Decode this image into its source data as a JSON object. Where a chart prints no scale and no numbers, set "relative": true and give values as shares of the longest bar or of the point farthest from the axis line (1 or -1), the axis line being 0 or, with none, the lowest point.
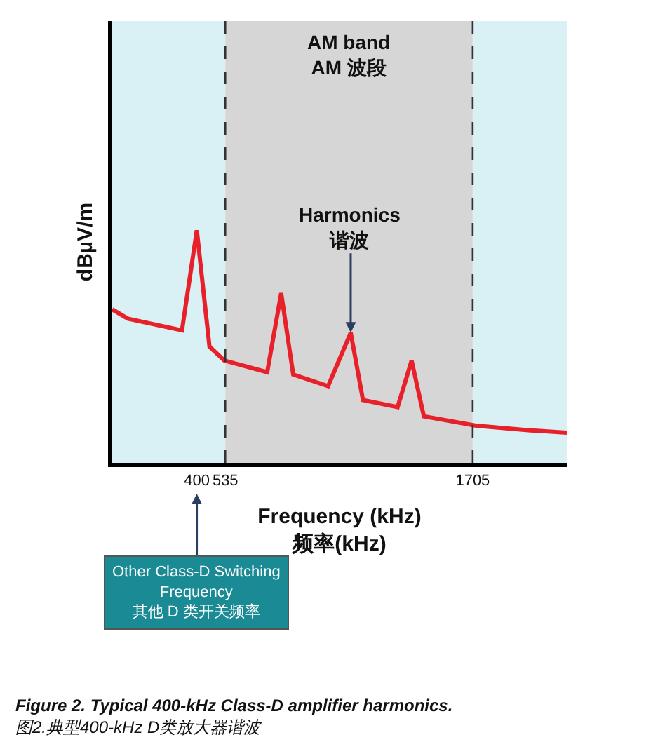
{
  "chart_data": {
    "type": "line",
    "relative": true,
    "xlabel": "Frequency (kHz)\n频率(kHz)",
    "ylabel": "dBµV/m",
    "xlim": [
      0,
      2150
    ],
    "xticks": [
      400,
      535,
      1705
    ],
    "tick_labels": "x",
    "grid": false,
    "legend": false,
    "marker": "none",
    "line_style": "solid",
    "series": [
      {
        "color": "#e8202a",
        "x": [
          0,
          74,
          330,
          400,
          460,
          530,
          733,
          799,
          856,
          1021,
          1128,
          1186,
          1350,
          1416,
          1474,
          1721,
          1968,
          2150
        ],
        "values": [
          0.66,
          0.62,
          0.57,
          1,
          0.5,
          0.44,
          0.39,
          0.73,
          0.38,
          0.33,
          0.56,
          0.27,
          0.24,
          0.44,
          0.2,
          0.16,
          0.14,
          0.13
        ]
      }
    ],
    "bands": [
      {
        "axis": "x",
        "from": 0,
        "to": 535,
        "color": "#d9f0f5"
      },
      {
        "axis": "x",
        "from": 535,
        "to": 1705,
        "color": "#d6d6d6",
        "label": "AM band\nAM 波段"
      },
      {
        "axis": "x",
        "from": 1705,
        "to": 2150,
        "color": "#d9f0f5"
      }
    ],
    "ref_lines": [
      {
        "axis": "x",
        "value": 535,
        "color": "#333333",
        "line_style": "dashed"
      },
      {
        "axis": "x",
        "value": 1705,
        "color": "#333333",
        "line_style": "dashed"
      }
    ],
    "annotations": [
      {
        "text": "Harmonics\n谐波",
        "x": 1128,
        "y": 0.56
      },
      "Other Class-D Switching\nFrequency\n其他 D 类开关频率",
      "Figure 2. Typical 400-kHz Class-D amplifier harmonics.\n图2.典型400-kHz D类放大器谐波"
    ]
  }
}
